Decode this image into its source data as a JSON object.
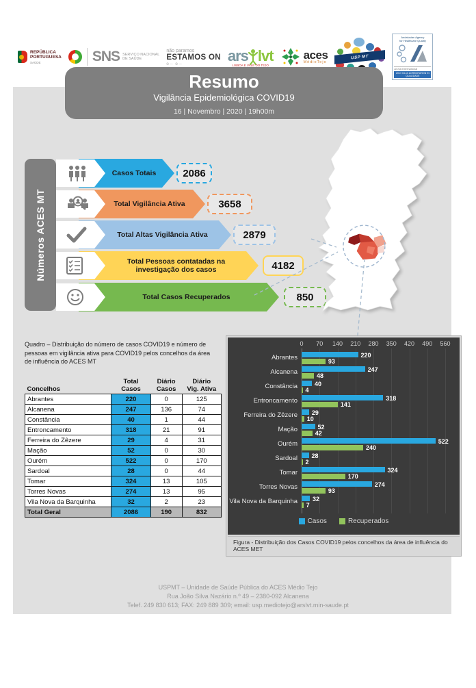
{
  "header": {
    "logos": {
      "republica": {
        "line1": "REPÚBLICA",
        "line2": "PORTUGUESA",
        "sub": "SAÚDE"
      },
      "sns": {
        "abbr": "SNS",
        "name1": "SERVIÇO NACIONAL",
        "name2": "DE SAÚDE"
      },
      "estamos_on": {
        "tagline": "não paramos",
        "name": "ESTAMOS ON",
        "sub": "COVID-19"
      },
      "arslvt": {
        "part1": "ars",
        "part2": "lvt",
        "sub": "LISBOA E VALE DO TEJO"
      },
      "aces": {
        "name": "aces",
        "sub": "MédioTejo"
      },
      "uspmt": {
        "name": "USP MT"
      },
      "acsa": {
        "top1": "Andalusian Agency",
        "top2": "for Healthcare Quality",
        "name": "ACSA International",
        "bar": "2017-04-10 ACREDITATION IN QUALIDADE"
      }
    }
  },
  "title_card": {
    "title": "Resumo",
    "subtitle": "Vigilância Epidemiológica COVID19",
    "date": "16 | Novembro | 2020 | 19h00m"
  },
  "sidebar": {
    "label": "Números ACES MT"
  },
  "stats": [
    {
      "label": "Casos Totais",
      "value": "2086",
      "color": "#29a8e0",
      "icon": "people-group-icon",
      "value_border": "dashed"
    },
    {
      "label": "Total Vigilância Ativa",
      "value": "3658",
      "color": "#f0975e",
      "icon": "surveillance-icon",
      "value_border": "dashed"
    },
    {
      "label": "Total Altas Vigilância Ativa",
      "value": "2879",
      "color": "#9dc3e6",
      "icon": "checkmark-icon",
      "value_border": "dashed"
    },
    {
      "label": "Total Pessoas contatadas na investigação dos casos",
      "value": "4182",
      "color": "#ffd456",
      "icon": "checklist-icon",
      "value_border": "solid"
    },
    {
      "label": "Total Casos Recuperados",
      "value": "850",
      "color": "#76b94f",
      "icon": "smiley-icon",
      "value_border": "dashed"
    }
  ],
  "quadro_caption": "Quadro – Distribuição do número de casos COVID19 e número de pessoas em vigilância ativa para COVID19 pelos concelhos da área de influência do ACES MT",
  "table": {
    "headers": {
      "concelhos": "Concelhos",
      "total_casos": "Total\nCasos",
      "diario_casos": "Diário\nCasos",
      "diario_vig": "Diário\nVig. Ativa"
    },
    "rows": [
      [
        "Abrantes",
        "220",
        "0",
        "125"
      ],
      [
        "Alcanena",
        "247",
        "136",
        "74"
      ],
      [
        "Constância",
        "40",
        "1",
        "44"
      ],
      [
        "Entroncamento",
        "318",
        "21",
        "91"
      ],
      [
        "Ferreira do Zêzere",
        "29",
        "4",
        "31"
      ],
      [
        "Mação",
        "52",
        "0",
        "30"
      ],
      [
        "Ourém",
        "522",
        "0",
        "170"
      ],
      [
        "Sardoal",
        "28",
        "0",
        "44"
      ],
      [
        "Tomar",
        "324",
        "13",
        "105"
      ],
      [
        "Torres Novas",
        "274",
        "13",
        "95"
      ],
      [
        "Vila Nova da Barquinha",
        "32",
        "2",
        "23"
      ]
    ],
    "total_row": [
      "Total Geral",
      "2086",
      "190",
      "832"
    ]
  },
  "chart_data": {
    "type": "bar",
    "orientation": "horizontal",
    "categories": [
      "Abrantes",
      "Alcanena",
      "Constância",
      "Entroncamento",
      "Ferreira do Zêzere",
      "Mação",
      "Ourém",
      "Sardoal",
      "Tomar",
      "Torres Novas",
      "Vila Nova da Barquinha"
    ],
    "series": [
      {
        "name": "Casos",
        "color": "#29a8e0",
        "values": [
          220,
          247,
          40,
          318,
          29,
          52,
          522,
          28,
          324,
          274,
          32
        ]
      },
      {
        "name": "Recuperados",
        "color": "#92c45c",
        "values": [
          93,
          48,
          4,
          141,
          10,
          42,
          240,
          2,
          170,
          93,
          7
        ]
      }
    ],
    "x_ticks": [
      0,
      70,
      140,
      210,
      280,
      350,
      420,
      490,
      560
    ],
    "xlim": [
      0,
      560
    ],
    "grid": true,
    "legend_position": "bottom",
    "background": "#3b3b3b"
  },
  "figure_caption": "Figura -  Distribuição dos Casos COVID19 pelos concelhos da área de influência do ACES MET",
  "footer": {
    "line1": "USPMT – Unidade de Saúde Pública do ACES Médio Tejo",
    "line2": "Rua João Silva Nazário n.º 49 – 2380-092 Alcanena",
    "line3": "Telef. 249 830 613; FAX: 249 889 309; email: usp.mediotejo@arslvt.min-saude.pt"
  },
  "colors": {
    "page_band": "#e0e0e0",
    "title_card": "#7f7f7f",
    "table_casos_column": "#29a8e0",
    "table_total_row": "#b8b8b8",
    "map_region_shades": [
      "#8e1a1a",
      "#e25a45",
      "#ef9b87",
      "#f7d9d2"
    ]
  }
}
